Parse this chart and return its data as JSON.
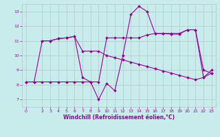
{
  "background_color": "#c8ecec",
  "line_color": "#990099",
  "grid_color": "#b0c8c8",
  "xlabel": "Windchill (Refroidissement éolien,°C)",
  "xlabel_color": "#990099",
  "tick_color": "#990099",
  "ylim": [
    6.5,
    13.5
  ],
  "xlim": [
    -0.5,
    23.5
  ],
  "yticks": [
    7,
    8,
    9,
    10,
    11,
    12,
    13
  ],
  "xticks": [
    0,
    2,
    3,
    4,
    5,
    6,
    7,
    8,
    9,
    10,
    11,
    12,
    13,
    14,
    15,
    16,
    17,
    18,
    19,
    20,
    21,
    22,
    23
  ],
  "series": [
    {
      "x": [
        0,
        1,
        2,
        3,
        4,
        5,
        6,
        7,
        8,
        9,
        10,
        11,
        12,
        13,
        14,
        15,
        16,
        17,
        18,
        19,
        20,
        21,
        22,
        23
      ],
      "y": [
        8.2,
        8.2,
        11.0,
        11.0,
        11.15,
        11.2,
        11.3,
        8.5,
        8.2,
        7.0,
        8.1,
        7.6,
        10.0,
        12.8,
        13.35,
        13.0,
        11.5,
        11.5,
        11.45,
        11.45,
        11.75,
        11.75,
        8.5,
        8.8
      ]
    },
    {
      "x": [
        0,
        1,
        2,
        3,
        4,
        5,
        6,
        7,
        8,
        9,
        10,
        11,
        12,
        13,
        14,
        15,
        16,
        17,
        18,
        19,
        20,
        21,
        22,
        23
      ],
      "y": [
        8.2,
        8.2,
        8.2,
        8.2,
        8.2,
        8.2,
        8.2,
        8.2,
        8.2,
        8.2,
        11.2,
        11.2,
        11.2,
        11.2,
        11.2,
        11.4,
        11.5,
        11.5,
        11.5,
        11.5,
        11.75,
        11.75,
        9.0,
        8.8
      ]
    },
    {
      "x": [
        2,
        3,
        4,
        5,
        6,
        7,
        8,
        9,
        10,
        11,
        12,
        13,
        14,
        15,
        16,
        17,
        18,
        19,
        20,
        21,
        22,
        23
      ],
      "y": [
        11.0,
        11.0,
        11.15,
        11.2,
        11.3,
        10.3,
        10.3,
        10.3,
        10.0,
        9.85,
        9.7,
        9.55,
        9.4,
        9.25,
        9.1,
        8.95,
        8.8,
        8.65,
        8.5,
        8.35,
        8.5,
        9.0
      ]
    }
  ],
  "marker": "D",
  "marker_size": 2,
  "linewidth": 0.8,
  "tick_fontsize": 4.5,
  "xlabel_fontsize": 5.5
}
